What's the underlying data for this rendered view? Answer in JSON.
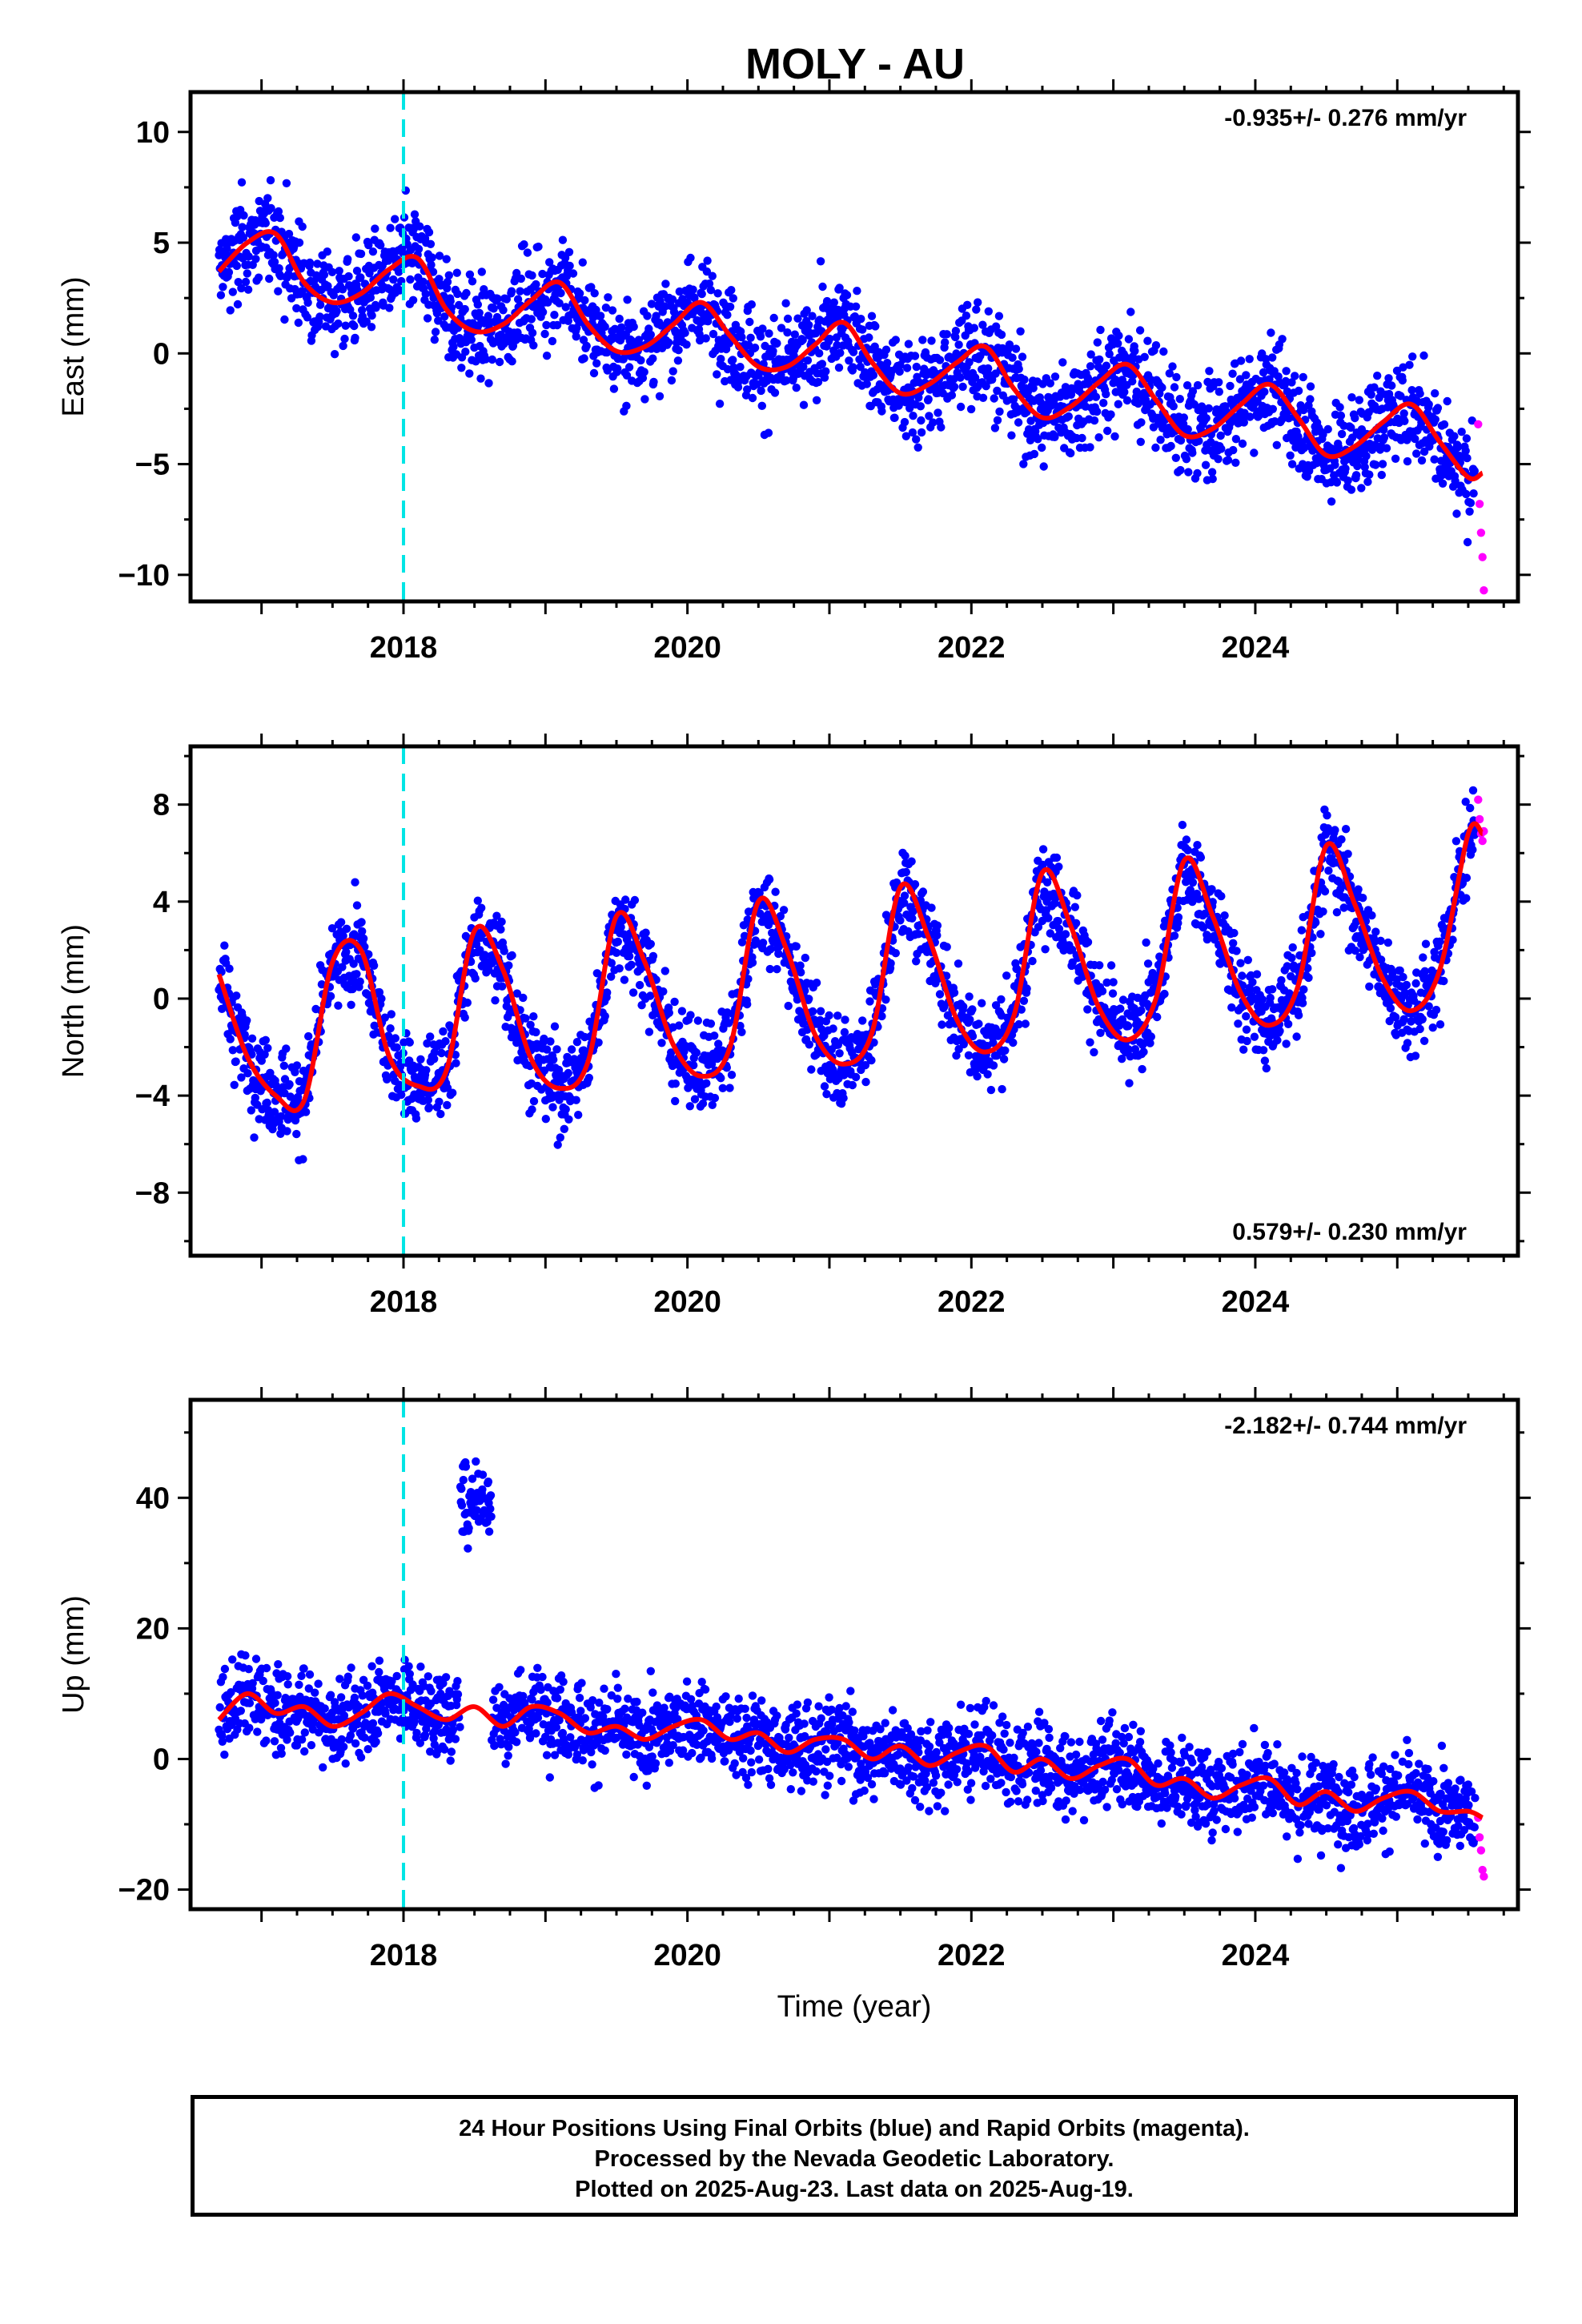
{
  "title": "MOLY - AU",
  "colors": {
    "final_orbits": "#0000ff",
    "rapid_orbits": "#ff00ff",
    "model_fit": "#ff0000",
    "event_marker": "#00e5e5"
  },
  "caption": {
    "line1": "24 Hour Positions Using Final Orbits (blue) and Rapid Orbits (magenta).",
    "line2": "Processed by the Nevada Geodetic Laboratory.",
    "line3": "Plotted on 2025-Aug-23. Last data on 2025-Aug-19."
  },
  "chart_data": [
    {
      "type": "scatter",
      "ylabel": "East (mm)",
      "xlabel": "",
      "rate_label": "-0.935+/- 0.276 mm/yr",
      "rate_position": "top-right",
      "xlim": [
        2016.5,
        2025.85
      ],
      "ylim": [
        -11.2,
        11.8
      ],
      "x_ticks": [
        2018,
        2020,
        2022,
        2024
      ],
      "y_ticks": [
        -10,
        -5,
        0,
        5,
        10
      ],
      "y_tick_labels": [
        "−10",
        "−5",
        "0",
        "5",
        "10"
      ],
      "event_line_x": 2018.0,
      "series": [
        {
          "name": "Final Orbits",
          "color": "blue",
          "mark": "points",
          "x_range": [
            2016.7,
            2025.55
          ]
        },
        {
          "name": "Rapid Orbits",
          "color": "magenta",
          "mark": "points",
          "x": [
            2025.57,
            2025.58,
            2025.59,
            2025.6,
            2025.61
          ],
          "y": [
            -3.2,
            -6.8,
            -8.1,
            -9.2,
            -10.7
          ]
        },
        {
          "name": "Model Fit",
          "color": "red",
          "mark": "line",
          "x": [
            2016.7,
            2016.9,
            2017.1,
            2017.3,
            2017.5,
            2017.7,
            2017.9,
            2018.1,
            2018.3,
            2018.5,
            2018.7,
            2018.9,
            2019.1,
            2019.3,
            2019.5,
            2019.7,
            2019.9,
            2020.1,
            2020.3,
            2020.5,
            2020.7,
            2020.9,
            2021.1,
            2021.3,
            2021.5,
            2021.7,
            2021.9,
            2022.1,
            2022.3,
            2022.5,
            2022.7,
            2022.9,
            2023.1,
            2023.3,
            2023.5,
            2023.7,
            2023.9,
            2024.1,
            2024.3,
            2024.5,
            2024.7,
            2024.9,
            2025.1,
            2025.3,
            2025.5,
            2025.6
          ],
          "y": [
            3.7,
            5.0,
            5.4,
            3.2,
            2.3,
            2.7,
            3.8,
            4.3,
            2.0,
            1.0,
            1.3,
            2.4,
            3.2,
            1.3,
            0.1,
            0.3,
            1.3,
            2.3,
            0.8,
            -0.6,
            -0.6,
            0.4,
            1.4,
            -0.4,
            -1.8,
            -1.4,
            -0.4,
            0.3,
            -1.6,
            -2.9,
            -2.4,
            -1.3,
            -0.5,
            -2.1,
            -3.7,
            -3.4,
            -2.3,
            -1.4,
            -2.9,
            -4.6,
            -4.2,
            -3.1,
            -2.3,
            -4.0,
            -5.6,
            -5.4
          ]
        }
      ]
    },
    {
      "type": "scatter",
      "ylabel": "North (mm)",
      "xlabel": "",
      "rate_label": "0.579+/- 0.230 mm/yr",
      "rate_position": "bottom-right",
      "xlim": [
        2016.5,
        2025.85
      ],
      "ylim": [
        -10.6,
        10.4
      ],
      "x_ticks": [
        2018,
        2020,
        2022,
        2024
      ],
      "y_ticks": [
        -8,
        -4,
        0,
        4,
        8
      ],
      "y_tick_labels": [
        "−8",
        "−4",
        "0",
        "4",
        "8"
      ],
      "event_line_x": 2018.0,
      "series": [
        {
          "name": "Final Orbits",
          "color": "blue",
          "mark": "points",
          "x_range": [
            2016.7,
            2025.55
          ]
        },
        {
          "name": "Rapid Orbits",
          "color": "magenta",
          "mark": "points",
          "x": [
            2025.57,
            2025.58,
            2025.59,
            2025.6,
            2025.61
          ],
          "y": [
            8.2,
            7.4,
            6.8,
            6.5,
            6.9
          ]
        },
        {
          "name": "Model Fit",
          "color": "red",
          "mark": "line",
          "x": [
            2016.7,
            2016.9,
            2017.1,
            2017.3,
            2017.5,
            2017.7,
            2017.9,
            2018.1,
            2018.3,
            2018.5,
            2018.7,
            2018.9,
            2019.1,
            2019.3,
            2019.5,
            2019.7,
            2019.9,
            2020.1,
            2020.3,
            2020.5,
            2020.7,
            2020.9,
            2021.1,
            2021.3,
            2021.5,
            2021.7,
            2021.9,
            2022.1,
            2022.3,
            2022.5,
            2022.7,
            2022.9,
            2023.1,
            2023.3,
            2023.5,
            2023.7,
            2023.9,
            2024.1,
            2024.3,
            2024.5,
            2024.7,
            2024.9,
            2025.1,
            2025.3,
            2025.5,
            2025.6
          ],
          "y": [
            1.0,
            -2.4,
            -4.0,
            -4.2,
            1.5,
            2.0,
            -2.4,
            -3.6,
            -3.0,
            2.8,
            1.2,
            -2.5,
            -3.7,
            -2.6,
            3.4,
            1.5,
            -1.9,
            -3.2,
            -2.0,
            4.0,
            2.0,
            -1.5,
            -2.7,
            -1.4,
            4.6,
            2.5,
            -0.9,
            -2.2,
            -0.7,
            5.2,
            3.0,
            -0.4,
            -1.7,
            0.0,
            5.7,
            3.4,
            0.2,
            -1.1,
            0.5,
            6.3,
            3.9,
            0.8,
            -0.5,
            1.2,
            6.8,
            6.8
          ]
        }
      ]
    },
    {
      "type": "scatter",
      "ylabel": "Up (mm)",
      "xlabel": "Time (year)",
      "rate_label": "-2.182+/- 0.744 mm/yr",
      "rate_position": "top-right",
      "xlim": [
        2016.5,
        2025.85
      ],
      "ylim": [
        -23,
        55
      ],
      "x_ticks": [
        2018,
        2020,
        2022,
        2024
      ],
      "y_ticks": [
        -20,
        0,
        20,
        40
      ],
      "y_tick_labels": [
        "−20",
        "0",
        "20",
        "40"
      ],
      "event_line_x": 2018.0,
      "series": [
        {
          "name": "Final Orbits",
          "color": "blue",
          "mark": "points",
          "x_range": [
            2016.7,
            2025.55
          ]
        },
        {
          "name": "Rapid Orbits",
          "color": "magenta",
          "mark": "points",
          "x": [
            2025.57,
            2025.58,
            2025.59,
            2025.6,
            2025.61
          ],
          "y": [
            -9,
            -12,
            -14,
            -17,
            -18
          ]
        },
        {
          "name": "Model Fit",
          "color": "red",
          "mark": "line",
          "x": [
            2016.7,
            2016.9,
            2017.1,
            2017.3,
            2017.5,
            2017.7,
            2017.9,
            2018.1,
            2018.3,
            2018.5,
            2018.7,
            2018.9,
            2019.1,
            2019.3,
            2019.5,
            2019.7,
            2019.9,
            2020.1,
            2020.3,
            2020.5,
            2020.7,
            2020.9,
            2021.1,
            2021.3,
            2021.5,
            2021.7,
            2021.9,
            2022.1,
            2022.3,
            2022.5,
            2022.7,
            2022.9,
            2023.1,
            2023.3,
            2023.5,
            2023.7,
            2023.9,
            2024.1,
            2024.3,
            2024.5,
            2024.7,
            2024.9,
            2025.1,
            2025.3,
            2025.5,
            2025.6
          ],
          "y": [
            6,
            10,
            7,
            8,
            5,
            7,
            10,
            8,
            6,
            8,
            5,
            8,
            7,
            4,
            5,
            3,
            5,
            6,
            3,
            4,
            1,
            3,
            3,
            0,
            2,
            -1,
            1,
            2,
            -2,
            0,
            -3,
            -1,
            0,
            -4,
            -3,
            -6,
            -4,
            -3,
            -7,
            -5,
            -8,
            -6,
            -5,
            -8,
            -8,
            -9
          ]
        }
      ]
    }
  ]
}
